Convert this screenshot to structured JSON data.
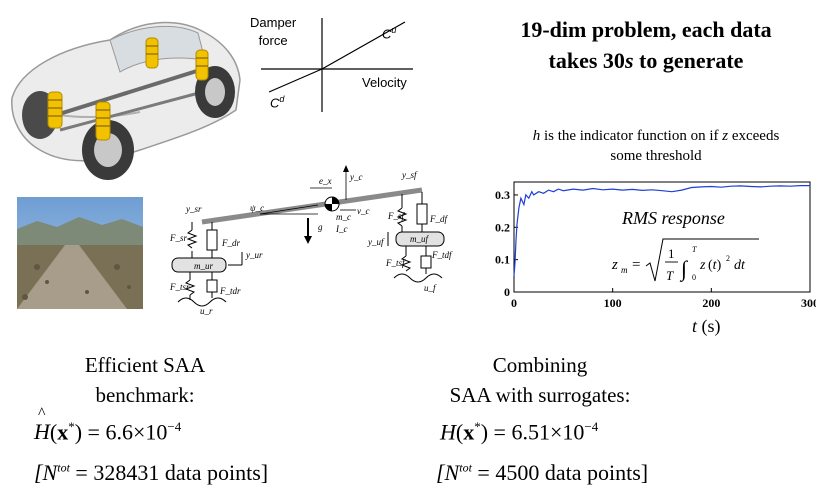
{
  "damper_plot": {
    "y_label_line1": "Damper",
    "y_label_line2": "force",
    "x_label": "Velocity",
    "cu_label": "C",
    "cu_sup": "u",
    "cd_label": "C",
    "cd_sup": "d"
  },
  "headline": {
    "line1": "19-dim problem, each data",
    "line2_pre": "takes 30",
    "line2_var": "s",
    "line2_post": " to generate"
  },
  "indicator_note": {
    "h": "h",
    "mid": " is the indicator function on if ",
    "z": "z",
    "end": " exceeds",
    "line2": "some threshold"
  },
  "chart_data": {
    "type": "line",
    "title": "",
    "annotation": "RMS response",
    "formula": "z_m = sqrt(1/T ∫_0^T z(t)^2 dt)",
    "xlabel": "t (s)",
    "xlabel_var": "t",
    "xlabel_unit": "(s)",
    "ylabel": "",
    "xlim": [
      0,
      300
    ],
    "ylim": [
      0,
      0.34
    ],
    "x_ticks": [
      "0",
      "100",
      "200",
      "300"
    ],
    "y_ticks": [
      "0",
      "0.1",
      "0.2",
      "0.3"
    ],
    "grid": false,
    "color": "#1f3fd8",
    "series": [
      {
        "x": [
          0,
          1,
          2,
          3,
          5,
          7,
          10,
          12,
          15,
          18,
          20,
          25,
          30,
          35,
          40,
          45,
          50,
          60,
          70,
          80,
          90,
          100,
          110,
          120,
          130,
          140,
          150,
          160,
          170,
          180,
          190,
          200,
          210,
          220,
          230,
          240,
          250,
          260,
          270,
          280,
          290,
          300
        ],
        "values": [
          0.05,
          0.09,
          0.16,
          0.21,
          0.26,
          0.29,
          0.27,
          0.3,
          0.29,
          0.31,
          0.3,
          0.31,
          0.305,
          0.315,
          0.31,
          0.318,
          0.313,
          0.318,
          0.315,
          0.32,
          0.316,
          0.318,
          0.315,
          0.317,
          0.314,
          0.316,
          0.313,
          0.31,
          0.315,
          0.323,
          0.325,
          0.326,
          0.324,
          0.327,
          0.328,
          0.326,
          0.325,
          0.327,
          0.328,
          0.327,
          0.329,
          0.329
        ]
      }
    ]
  },
  "diagram": {
    "labels": [
      "e_x",
      "y_c",
      "y_sf",
      "y_sr",
      "ψ_c",
      "m_c",
      "I_c",
      "g",
      "v_c",
      "F_sr",
      "F_dr",
      "m_ur",
      "y_ur",
      "F_tsr",
      "F_tdr",
      "u_r",
      "F_sf",
      "F_df",
      "m_uf",
      "y_uf",
      "F_tsf",
      "F_tdf",
      "u_f"
    ]
  },
  "left_result": {
    "heading_line1": "Efficient SAA",
    "heading_line2": "benchmark:",
    "H": "H",
    "hat": "^",
    "arg_open": "(",
    "x": "x",
    "star": "*",
    "arg_close": ")",
    "value": " = 6.6×10",
    "exp": "−4",
    "n_open": "[N",
    "n_sup": "tot",
    "n_rest": " = 328431 data points]"
  },
  "right_result": {
    "heading_line1": "Combining",
    "heading_line2": "SAA with surrogates:",
    "H": "H",
    "arg_open": "(",
    "x": "x",
    "star": "*",
    "arg_close": ")",
    "value": " = 6.51×10",
    "exp": "−4",
    "n_open": "[N",
    "n_sup": "tot",
    "n_rest": " = 4500 data points]"
  }
}
